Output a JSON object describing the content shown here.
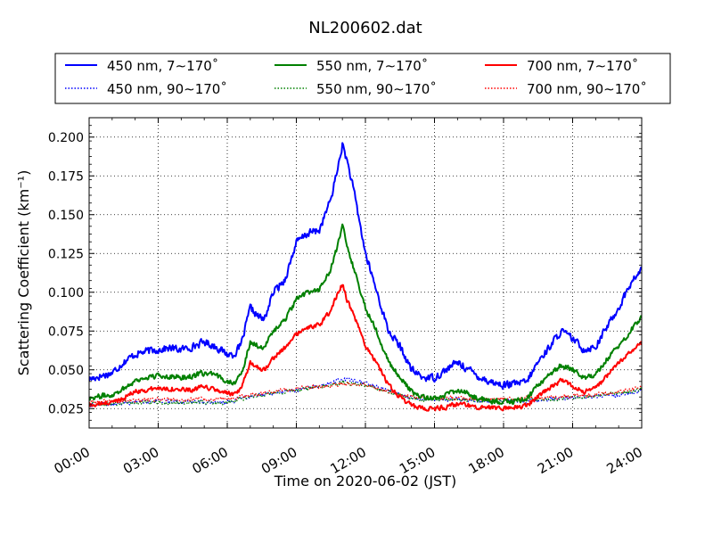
{
  "chart_data": {
    "type": "line",
    "title": "NL200602.dat",
    "xlabel": "Time on 2020-06-02 (JST)",
    "ylabel": "Scattering Coefficient (km⁻¹)",
    "x_unit": "hours",
    "xlim": [
      0,
      24
    ],
    "ylim": [
      0.0125,
      0.2125
    ],
    "x_ticks": [
      {
        "value": 0,
        "label": "00:00"
      },
      {
        "value": 3,
        "label": "03:00"
      },
      {
        "value": 6,
        "label": "06:00"
      },
      {
        "value": 9,
        "label": "09:00"
      },
      {
        "value": 12,
        "label": "12:00"
      },
      {
        "value": 15,
        "label": "15:00"
      },
      {
        "value": 18,
        "label": "18:00"
      },
      {
        "value": 21,
        "label": "21:00"
      },
      {
        "value": 24,
        "label": "24:00"
      }
    ],
    "y_ticks": [
      {
        "value": 0.025,
        "label": "0.025"
      },
      {
        "value": 0.05,
        "label": "0.050"
      },
      {
        "value": 0.075,
        "label": "0.075"
      },
      {
        "value": 0.1,
        "label": "0.100"
      },
      {
        "value": 0.125,
        "label": "0.125"
      },
      {
        "value": 0.15,
        "label": "0.150"
      },
      {
        "value": 0.175,
        "label": "0.175"
      },
      {
        "value": 0.2,
        "label": "0.200"
      }
    ],
    "grid": true,
    "legend_placement": "top (above plot)",
    "series": [
      {
        "name": "450 nm, 7∼170˚",
        "color": "#0000ff",
        "style": "solid",
        "noise": 0.0022,
        "x": [
          0,
          0.5,
          1,
          1.5,
          2,
          2.5,
          3,
          3.5,
          4,
          4.5,
          5,
          5.5,
          6,
          6.3,
          6.6,
          7,
          7.3,
          7.6,
          8,
          8.5,
          9,
          9.5,
          10,
          10.5,
          10.8,
          11,
          11.2,
          11.5,
          12,
          12.5,
          13,
          13.5,
          14,
          14.5,
          15,
          15.5,
          16,
          16.5,
          17,
          17.5,
          18,
          18.5,
          19,
          19.5,
          20,
          20.5,
          21,
          21.5,
          22,
          22.5,
          23,
          23.5,
          24
        ],
        "y": [
          0.044,
          0.046,
          0.048,
          0.055,
          0.06,
          0.062,
          0.063,
          0.064,
          0.063,
          0.065,
          0.068,
          0.065,
          0.06,
          0.06,
          0.066,
          0.09,
          0.085,
          0.082,
          0.1,
          0.108,
          0.132,
          0.138,
          0.14,
          0.16,
          0.18,
          0.195,
          0.185,
          0.165,
          0.125,
          0.1,
          0.075,
          0.065,
          0.05,
          0.045,
          0.045,
          0.05,
          0.055,
          0.05,
          0.045,
          0.042,
          0.04,
          0.041,
          0.042,
          0.055,
          0.065,
          0.075,
          0.07,
          0.063,
          0.065,
          0.078,
          0.09,
          0.105,
          0.115
        ]
      },
      {
        "name": "550 nm, 7∼170˚",
        "color": "#008000",
        "style": "solid",
        "noise": 0.0016,
        "x": [
          0,
          0.5,
          1,
          1.5,
          2,
          2.5,
          3,
          3.5,
          4,
          4.5,
          5,
          5.5,
          6,
          6.3,
          6.6,
          7,
          7.3,
          7.6,
          8,
          8.5,
          9,
          9.5,
          10,
          10.5,
          10.8,
          11,
          11.2,
          11.5,
          12,
          12.5,
          13,
          13.5,
          14,
          14.5,
          15,
          15.5,
          16,
          16.5,
          17,
          17.5,
          18,
          18.5,
          19,
          19.5,
          20,
          20.5,
          21,
          21.5,
          22,
          22.5,
          23,
          23.5,
          24
        ],
        "y": [
          0.032,
          0.033,
          0.034,
          0.038,
          0.043,
          0.045,
          0.046,
          0.046,
          0.045,
          0.046,
          0.048,
          0.046,
          0.043,
          0.042,
          0.046,
          0.068,
          0.066,
          0.064,
          0.075,
          0.082,
          0.095,
          0.1,
          0.102,
          0.115,
          0.13,
          0.143,
          0.13,
          0.115,
          0.09,
          0.075,
          0.055,
          0.045,
          0.036,
          0.032,
          0.032,
          0.034,
          0.037,
          0.034,
          0.031,
          0.03,
          0.029,
          0.03,
          0.031,
          0.04,
          0.047,
          0.053,
          0.05,
          0.045,
          0.047,
          0.057,
          0.065,
          0.075,
          0.084
        ]
      },
      {
        "name": "700 nm, 7∼170˚",
        "color": "#ff0000",
        "style": "solid",
        "noise": 0.0014,
        "x": [
          0,
          0.5,
          1,
          1.5,
          2,
          2.5,
          3,
          3.5,
          4,
          4.5,
          5,
          5.5,
          6,
          6.3,
          6.6,
          7,
          7.3,
          7.6,
          8,
          8.5,
          9,
          9.5,
          10,
          10.5,
          10.8,
          11,
          11.2,
          11.5,
          12,
          12.5,
          13,
          13.5,
          14,
          14.5,
          15,
          15.5,
          16,
          16.5,
          17,
          17.5,
          18,
          18.5,
          19,
          19.5,
          20,
          20.5,
          21,
          21.5,
          22,
          22.5,
          23,
          23.5,
          24
        ],
        "y": [
          0.027,
          0.028,
          0.029,
          0.032,
          0.036,
          0.037,
          0.038,
          0.038,
          0.037,
          0.037,
          0.039,
          0.037,
          0.035,
          0.034,
          0.037,
          0.055,
          0.052,
          0.05,
          0.058,
          0.064,
          0.073,
          0.077,
          0.079,
          0.088,
          0.1,
          0.105,
          0.095,
          0.085,
          0.065,
          0.055,
          0.04,
          0.032,
          0.027,
          0.025,
          0.025,
          0.026,
          0.028,
          0.027,
          0.026,
          0.026,
          0.025,
          0.026,
          0.027,
          0.033,
          0.038,
          0.043,
          0.04,
          0.036,
          0.038,
          0.046,
          0.054,
          0.062,
          0.067
        ]
      },
      {
        "name": "450 nm, 90∼170˚",
        "color": "#0000ff",
        "style": "dotted",
        "noise": 0.0012,
        "x": [
          0,
          1,
          2,
          3,
          4,
          5,
          6,
          6.5,
          7,
          7.5,
          8,
          8.5,
          9,
          9.5,
          10,
          10.5,
          11,
          11.5,
          12,
          12.5,
          13,
          13.5,
          14,
          14.5,
          15,
          16,
          17,
          18,
          19,
          20,
          21,
          22,
          23,
          24
        ],
        "y": [
          0.027,
          0.028,
          0.029,
          0.03,
          0.029,
          0.029,
          0.029,
          0.031,
          0.033,
          0.034,
          0.035,
          0.036,
          0.037,
          0.039,
          0.04,
          0.042,
          0.044,
          0.043,
          0.041,
          0.039,
          0.037,
          0.034,
          0.032,
          0.031,
          0.031,
          0.031,
          0.03,
          0.03,
          0.03,
          0.031,
          0.032,
          0.033,
          0.034,
          0.036
        ]
      },
      {
        "name": "550 nm, 90∼170˚",
        "color": "#008000",
        "style": "dotted",
        "noise": 0.0012,
        "x": [
          0,
          1,
          2,
          3,
          4,
          5,
          6,
          6.5,
          7,
          7.5,
          8,
          8.5,
          9,
          9.5,
          10,
          10.5,
          11,
          11.5,
          12,
          12.5,
          13,
          13.5,
          14,
          14.5,
          15,
          16,
          17,
          18,
          19,
          20,
          21,
          22,
          23,
          24
        ],
        "y": [
          0.028,
          0.028,
          0.029,
          0.029,
          0.029,
          0.029,
          0.029,
          0.031,
          0.033,
          0.034,
          0.035,
          0.036,
          0.037,
          0.038,
          0.039,
          0.04,
          0.042,
          0.041,
          0.04,
          0.038,
          0.036,
          0.034,
          0.032,
          0.031,
          0.031,
          0.031,
          0.03,
          0.03,
          0.03,
          0.031,
          0.032,
          0.033,
          0.035,
          0.037
        ]
      },
      {
        "name": "700 nm, 90∼170˚",
        "color": "#ff0000",
        "style": "dotted",
        "noise": 0.0012,
        "x": [
          0,
          1,
          2,
          3,
          4,
          5,
          6,
          6.5,
          7,
          7.5,
          8,
          8.5,
          9,
          9.5,
          10,
          10.5,
          11,
          11.5,
          12,
          12.5,
          13,
          13.5,
          14,
          14.5,
          15,
          16,
          17,
          18,
          19,
          20,
          21,
          22,
          23,
          24
        ],
        "y": [
          0.029,
          0.03,
          0.03,
          0.031,
          0.031,
          0.031,
          0.031,
          0.032,
          0.034,
          0.035,
          0.036,
          0.037,
          0.038,
          0.039,
          0.039,
          0.04,
          0.041,
          0.041,
          0.04,
          0.038,
          0.036,
          0.034,
          0.033,
          0.032,
          0.032,
          0.032,
          0.031,
          0.031,
          0.032,
          0.032,
          0.033,
          0.034,
          0.036,
          0.038
        ]
      }
    ]
  }
}
